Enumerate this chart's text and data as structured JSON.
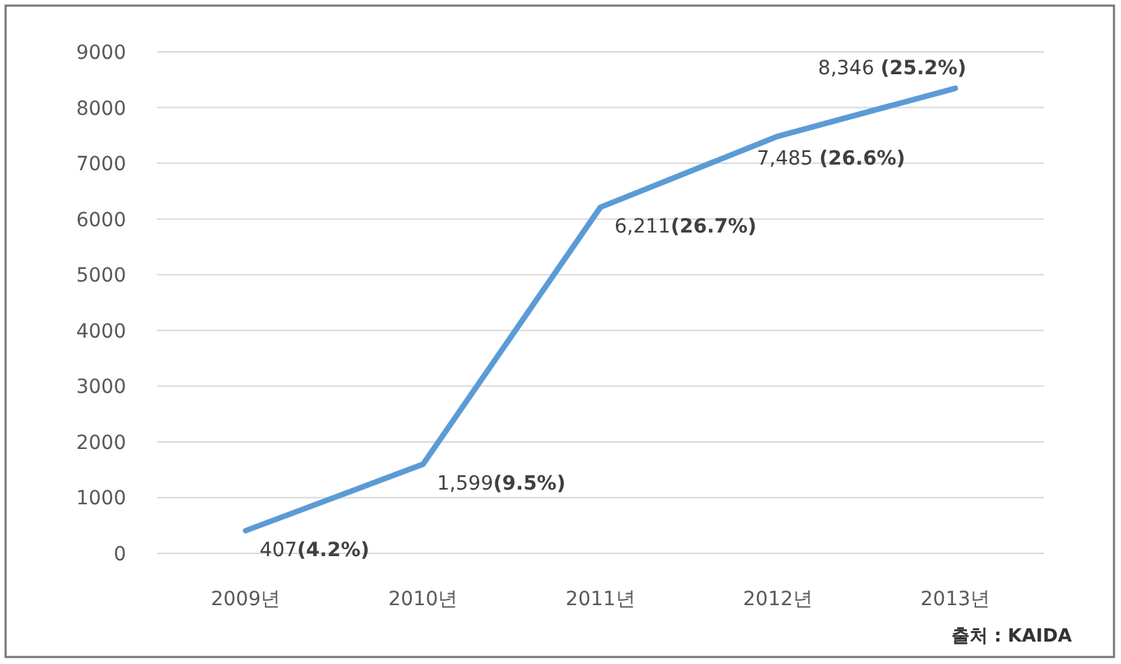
{
  "chart_data": {
    "type": "line",
    "categories": [
      "2009년",
      "2010년",
      "2011년",
      "2012년",
      "2013년"
    ],
    "values": [
      407,
      1599,
      6211,
      7485,
      8346
    ],
    "value_labels": [
      "407**(4.2%)**",
      "1,599**(9.5%)**",
      "6,211**(26.7%)**",
      "7,485 **(26.6%)**",
      "8,346 **(25.2%)**"
    ],
    "color": "#5b9bd5",
    "ylim": [
      0,
      9000
    ],
    "yticks": [
      0,
      1000,
      2000,
      3000,
      4000,
      5000,
      6000,
      7000,
      8000,
      9000
    ],
    "grid": "y",
    "marker": "none",
    "line_style": "solid",
    "annotations": [
      "**출처 : KAIDA**"
    ]
  }
}
